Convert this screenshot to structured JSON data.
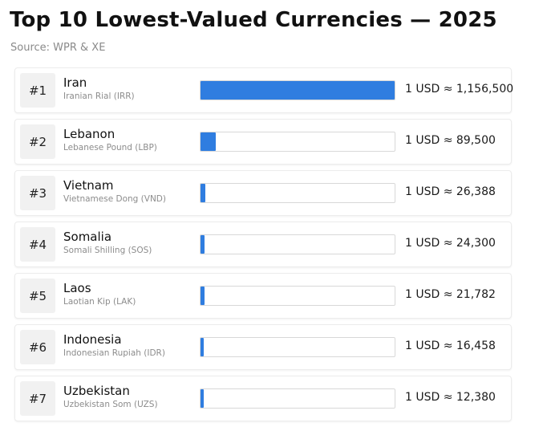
{
  "title": "Top 10 Lowest-Valued Currencies — 2025",
  "source": "Source: WPR & XE",
  "bar_color": "#2f7de0",
  "chart_data": {
    "type": "bar",
    "orientation": "horizontal",
    "title": "Top 10 Lowest-Valued Currencies — 2025",
    "categories": [
      "Iran",
      "Lebanon",
      "Vietnam",
      "Somalia",
      "Laos",
      "Indonesia",
      "Uzbekistan"
    ],
    "values": [
      1156500,
      89500,
      26388,
      24300,
      21782,
      16458,
      12380
    ],
    "xlim": [
      0,
      1156500
    ],
    "grid": false,
    "legend": "none"
  },
  "rows": [
    {
      "rank": "#1",
      "country": "Iran",
      "currency": "Iranian Rial (IRR)",
      "value": 1156500,
      "label": "1 USD ≈ 1,156,500"
    },
    {
      "rank": "#2",
      "country": "Lebanon",
      "currency": "Lebanese Pound (LBP)",
      "value": 89500,
      "label": "1 USD ≈ 89,500"
    },
    {
      "rank": "#3",
      "country": "Vietnam",
      "currency": "Vietnamese Dong (VND)",
      "value": 26388,
      "label": "1 USD ≈ 26,388"
    },
    {
      "rank": "#4",
      "country": "Somalia",
      "currency": "Somali Shilling (SOS)",
      "value": 24300,
      "label": "1 USD ≈ 24,300"
    },
    {
      "rank": "#5",
      "country": "Laos",
      "currency": "Laotian Kip (LAK)",
      "value": 21782,
      "label": "1 USD ≈ 21,782"
    },
    {
      "rank": "#6",
      "country": "Indonesia",
      "currency": "Indonesian Rupiah (IDR)",
      "value": 16458,
      "label": "1 USD ≈ 16,458"
    },
    {
      "rank": "#7",
      "country": "Uzbekistan",
      "currency": "Uzbekistan Som (UZS)",
      "value": 12380,
      "label": "1 USD ≈ 12,380"
    }
  ]
}
